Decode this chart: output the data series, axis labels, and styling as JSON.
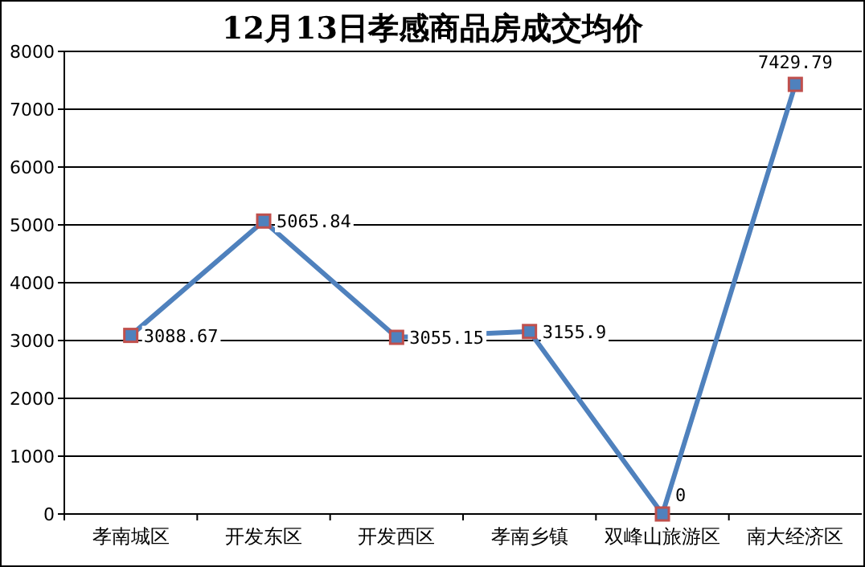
{
  "chart_data": {
    "type": "line",
    "title": "12月13日孝感商品房成交均价",
    "categories": [
      "孝南城区",
      "开发东区",
      "开发西区",
      "孝南乡镇",
      "双峰山旅游区",
      "南大经济区"
    ],
    "series": [
      {
        "color": "#4f81bd",
        "values": [
          3088.67,
          5065.84,
          3055.15,
          3155.9,
          0,
          7429.79
        ]
      }
    ],
    "ylim": [
      0,
      8000
    ],
    "yticks": [
      0,
      1000,
      2000,
      3000,
      4000,
      5000,
      6000,
      7000,
      8000
    ],
    "grid": "y",
    "marker": "square",
    "line_style": "solid",
    "data_labels": true
  }
}
